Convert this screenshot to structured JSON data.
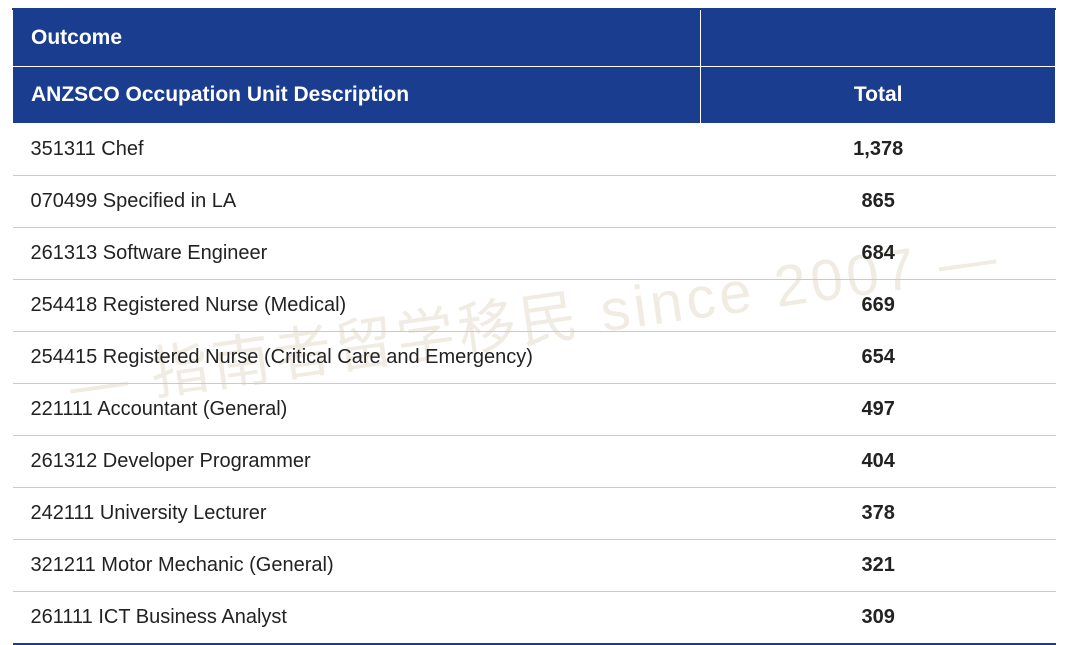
{
  "table": {
    "header_top_left": "Outcome",
    "header_top_right": "",
    "header_col1": "ANZSCO Occupation Unit Description",
    "header_col2": "Total",
    "header_bg": "#1a3d8f",
    "header_fg": "#ffffff",
    "row_border_color": "#b9cde8",
    "text_color": "#222222",
    "desc_fontweight": "normal",
    "total_fontweight": "bold",
    "fontsize_header": 21,
    "fontsize_body": 20,
    "col_widths_pct": [
      66,
      34
    ],
    "rows": [
      {
        "desc": "351311 Chef",
        "total": "1,378"
      },
      {
        "desc": "070499 Specified in LA",
        "total": "865"
      },
      {
        "desc": "261313 Software Engineer",
        "total": "684"
      },
      {
        "desc": "254418 Registered Nurse (Medical)",
        "total": "669"
      },
      {
        "desc": "254415 Registered Nurse (Critical Care and Emergency)",
        "total": "654"
      },
      {
        "desc": "221111 Accountant (General)",
        "total": "497"
      },
      {
        "desc": "261312 Developer Programmer",
        "total": "404"
      },
      {
        "desc": "242111 University Lecturer",
        "total": "378"
      },
      {
        "desc": "321211 Motor Mechanic (General)",
        "total": "321"
      },
      {
        "desc": "261111 ICT Business Analyst",
        "total": "309"
      }
    ]
  },
  "watermark": {
    "text": "— 指南者留学移民 since 2007 —",
    "color": "rgba(180,150,100,0.18)",
    "fontsize": 58,
    "rotation_deg": -8
  }
}
